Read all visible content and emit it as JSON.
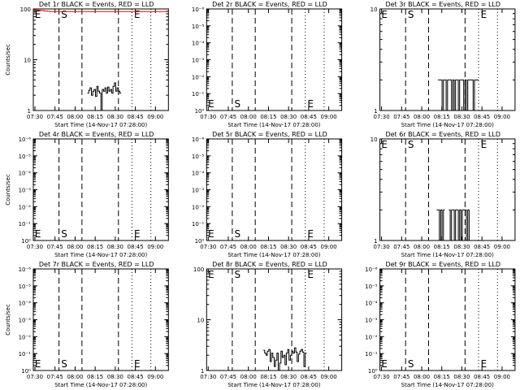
{
  "chart_data": [
    {
      "type": "line",
      "title": "Det 1r BLACK = Events, RED = LLD",
      "ylabel": "Counts/sec",
      "xlabel": "Start Time (14-Nov-17 07:28:00)",
      "yscale": "log",
      "ylim": [
        1,
        100
      ],
      "ytick_labels": [
        "1",
        "10",
        "100"
      ],
      "xlim": [
        0,
        100
      ],
      "xtick_labels": [
        "07:30",
        "07:45",
        "08:00",
        "08:15",
        "08:30",
        "08:45",
        "09:00"
      ],
      "markers": {
        "dashed": [
          19,
          36,
          63
        ],
        "dotted": [
          73,
          87
        ],
        "letters": [
          {
            "text": "E",
            "x": 0.5
          },
          {
            "text": "S",
            "x": 20
          },
          {
            "text": "E",
            "x": 74
          }
        ]
      },
      "series": [
        {
          "name": "Events",
          "color": "#000000",
          "values": [
            0,
            0,
            0,
            0,
            0,
            0,
            0,
            0,
            0,
            0,
            0,
            0,
            0,
            0,
            0,
            0,
            0,
            0,
            0,
            0,
            0,
            0,
            0,
            0,
            0,
            0,
            0,
            0,
            0,
            0,
            0,
            0,
            0,
            0,
            0,
            0,
            0,
            0,
            0,
            0,
            2.2,
            2.5,
            2.8,
            2.0,
            2.4,
            2.6,
            1.9,
            3.0,
            2.4,
            2.2,
            1.0,
            2.6,
            2.4,
            2.8,
            2.2,
            2.9,
            2.4,
            2.6,
            2.2,
            3.0,
            3.5,
            2.4,
            2.8,
            2.4,
            2.2,
            0,
            0,
            0,
            0,
            0,
            0,
            0,
            0,
            0,
            0,
            0,
            0,
            0,
            0,
            0,
            0,
            0,
            0,
            0,
            0,
            0,
            0,
            0,
            0,
            0,
            0,
            0,
            0,
            0,
            0,
            0,
            0,
            0,
            0,
            0
          ]
        },
        {
          "name": "LLD",
          "color": "#ff0000",
          "values": [
            97,
            97,
            96,
            95,
            95,
            94,
            93,
            93,
            92,
            91,
            91,
            90,
            90,
            89,
            89,
            89,
            89,
            89,
            89,
            89,
            89,
            89,
            89,
            89,
            89,
            89,
            89,
            89,
            89,
            89,
            89,
            89,
            89,
            89,
            89,
            89,
            89,
            89,
            89,
            89,
            89,
            89,
            89,
            89,
            89,
            89,
            89,
            89,
            89,
            89,
            89,
            89,
            89,
            89,
            89,
            89,
            89,
            89,
            89,
            89,
            89,
            89,
            89,
            89,
            89,
            89,
            89,
            89,
            89,
            89,
            89,
            89,
            89,
            89,
            89,
            89,
            89,
            89,
            89,
            89,
            89,
            89,
            89,
            89,
            89,
            89,
            89,
            89,
            89,
            89,
            89,
            89,
            89,
            89,
            89,
            89,
            89,
            89,
            89,
            89,
            89,
            89,
            89,
            89,
            89,
            89
          ]
        }
      ]
    },
    {
      "type": "line",
      "title": "Det 2r BLACK = Events, RED = LLD",
      "ylabel": "",
      "xlabel": "Start Time (14-Nov-17 07:28:00)",
      "yscale": "log",
      "ylim": [
        1e-06,
        1
      ],
      "ytick_labels": [
        "10⁰",
        "10⁻¹",
        "10⁻²",
        "10⁻³",
        "10⁻⁴",
        "10⁻⁵",
        "10⁻⁶"
      ],
      "xlim": [
        0,
        100
      ],
      "xtick_labels": [
        "07:30",
        "07:45",
        "08:00",
        "08:15",
        "08:30",
        "08:45",
        "09:00"
      ],
      "markers": {
        "dashed": [
          19,
          36,
          63
        ],
        "dotted": [
          73,
          87
        ],
        "letters": [
          {
            "text": "E",
            "x": 0.5
          },
          {
            "text": "S",
            "x": 20
          },
          {
            "text": "E",
            "x": 74
          }
        ],
        "letters_pos": "bottom"
      },
      "series": []
    },
    {
      "type": "line",
      "title": "Det 3r BLACK = Events, RED = LLD",
      "ylabel": "",
      "xlabel": "Start Time (14-Nov-17 07:28:00)",
      "yscale": "log",
      "ylim": [
        1,
        10
      ],
      "ytick_labels": [
        "1",
        "10"
      ],
      "xlim": [
        0,
        100
      ],
      "xtick_labels": [
        "07:30",
        "07:45",
        "08:00",
        "08:15",
        "08:30",
        "08:45",
        "09:00"
      ],
      "markers": {
        "dashed": [
          19,
          36,
          63
        ],
        "dotted": [
          73,
          87
        ],
        "letters": [
          {
            "text": "E",
            "x": 0.5
          },
          {
            "text": "S",
            "x": 20
          },
          {
            "text": "E",
            "x": 74
          }
        ]
      },
      "series": [
        {
          "name": "Events",
          "color": "#000000",
          "values": [
            0,
            0,
            0,
            0,
            0,
            0,
            0,
            0,
            0,
            0,
            0,
            0,
            0,
            0,
            0,
            0,
            0,
            0,
            0,
            0,
            0,
            0,
            0,
            0,
            0,
            0,
            0,
            0,
            0,
            0,
            0,
            0,
            0,
            0,
            0,
            0,
            0,
            0,
            0,
            0,
            0,
            0,
            0,
            2,
            2,
            2,
            1,
            2,
            2,
            1,
            2,
            2,
            2,
            1,
            2,
            1,
            2,
            2,
            1,
            2,
            2,
            2,
            1,
            2,
            1,
            2,
            2,
            2,
            2,
            1,
            2,
            2,
            2,
            0,
            0,
            0,
            0,
            0,
            0,
            0,
            0,
            0,
            0,
            0,
            0,
            0,
            0,
            0,
            0,
            0,
            0,
            0,
            0,
            0,
            0,
            0,
            0,
            0,
            0,
            0
          ]
        }
      ]
    },
    {
      "type": "line",
      "title": "Det 4r BLACK = Events, RED = LLD",
      "ylabel": "Counts/sec",
      "xlabel": "Start Time (14-Nov-17 07:28:00)",
      "yscale": "log",
      "ylim": [
        1e-06,
        1
      ],
      "ytick_labels": [
        "10⁰",
        "10⁻¹",
        "10⁻²",
        "10⁻³",
        "10⁻⁴",
        "10⁻⁵",
        "10⁻⁶"
      ],
      "xlim": [
        0,
        100
      ],
      "xtick_labels": [
        "07:30",
        "07:45",
        "08:00",
        "08:15",
        "08:30",
        "08:45",
        "09:00"
      ],
      "markers": {
        "dashed": [
          19,
          36,
          63
        ],
        "dotted": [
          73,
          87
        ],
        "letters": [
          {
            "text": "E",
            "x": 0.5
          },
          {
            "text": "S",
            "x": 20
          },
          {
            "text": "E",
            "x": 74
          }
        ],
        "letters_pos": "bottom"
      },
      "series": []
    },
    {
      "type": "line",
      "title": "Det 5r BLACK = Events, RED = LLD",
      "ylabel": "",
      "xlabel": "Start Time (14-Nov-17 07:28:00)",
      "yscale": "log",
      "ylim": [
        1e-06,
        1
      ],
      "ytick_labels": [
        "10⁰",
        "10⁻¹",
        "10⁻²",
        "10⁻³",
        "10⁻⁴",
        "10⁻⁵",
        "10⁻⁶"
      ],
      "xlim": [
        0,
        100
      ],
      "xtick_labels": [
        "07:30",
        "07:45",
        "08:00",
        "08:15",
        "08:30",
        "08:45",
        "09:00"
      ],
      "markers": {
        "dashed": [
          19,
          36,
          63
        ],
        "dotted": [
          73,
          87
        ],
        "letters": [
          {
            "text": "E",
            "x": 0.5
          },
          {
            "text": "S",
            "x": 20
          },
          {
            "text": "E",
            "x": 74
          }
        ],
        "letters_pos": "bottom"
      },
      "series": []
    },
    {
      "type": "line",
      "title": "Det 6r BLACK = Events, RED = LLD",
      "ylabel": "",
      "xlabel": "Start Time (14-Nov-17 07:28:00)",
      "yscale": "log",
      "ylim": [
        1,
        10
      ],
      "ytick_labels": [
        "1",
        "10"
      ],
      "xlim": [
        0,
        100
      ],
      "xtick_labels": [
        "07:30",
        "07:45",
        "08:00",
        "08:15",
        "08:30",
        "08:45",
        "09:00"
      ],
      "markers": {
        "dashed": [
          19,
          36,
          63
        ],
        "dotted": [
          73,
          87
        ],
        "letters": [
          {
            "text": "E",
            "x": 0.5
          },
          {
            "text": "S",
            "x": 20
          },
          {
            "text": "E",
            "x": 74
          }
        ]
      },
      "series": [
        {
          "name": "Events",
          "color": "#000000",
          "values": [
            0,
            0,
            0,
            0,
            0,
            0,
            0,
            0,
            0,
            0,
            0,
            0,
            0,
            0,
            0,
            0,
            0,
            0,
            0,
            0,
            0,
            0,
            0,
            0,
            0,
            0,
            0,
            0,
            0,
            0,
            0,
            0,
            0,
            0,
            0,
            0,
            0,
            0,
            0,
            0,
            0,
            0,
            2,
            2,
            1,
            2,
            1,
            2,
            0,
            0,
            0,
            2,
            1,
            2,
            2,
            1,
            2,
            2,
            1,
            2,
            1,
            2,
            2,
            2,
            1,
            2,
            1,
            0,
            0,
            0,
            0,
            0,
            0,
            0,
            0,
            0,
            0,
            0,
            0,
            0,
            0,
            0,
            0,
            0,
            0,
            0,
            0,
            0,
            0,
            0,
            0,
            0,
            0,
            0,
            0,
            0,
            0,
            0,
            0,
            0
          ]
        }
      ]
    },
    {
      "type": "line",
      "title": "Det 7r BLACK = Events, RED = LLD",
      "ylabel": "Counts/sec",
      "xlabel": "Start Time (14-Nov-17 07:28:00)",
      "yscale": "log",
      "ylim": [
        1e-06,
        1
      ],
      "ytick_labels": [
        "10⁰",
        "10⁻¹",
        "10⁻²",
        "10⁻³",
        "10⁻⁴",
        "10⁻⁵",
        "10⁻⁶"
      ],
      "xlim": [
        0,
        100
      ],
      "xtick_labels": [
        "07:30",
        "07:45",
        "08:00",
        "08:15",
        "08:30",
        "08:45",
        "09:00"
      ],
      "markers": {
        "dashed": [
          19,
          36,
          63
        ],
        "dotted": [
          73,
          87
        ],
        "letters": [
          {
            "text": "E",
            "x": 0.5
          },
          {
            "text": "S",
            "x": 20
          },
          {
            "text": "E",
            "x": 74
          }
        ],
        "letters_pos": "bottom"
      },
      "series": []
    },
    {
      "type": "line",
      "title": "Det 8r BLACK = Events, RED = LLD",
      "ylabel": "",
      "xlabel": "Start Time (14-Nov-17 07:28:00)",
      "yscale": "log",
      "ylim": [
        1,
        100
      ],
      "ytick_labels": [
        "1",
        "10",
        "100"
      ],
      "xlim": [
        0,
        100
      ],
      "xtick_labels": [
        "07:30",
        "07:45",
        "08:00",
        "08:15",
        "08:30",
        "08:45",
        "09:00"
      ],
      "markers": {
        "dashed": [
          19,
          36,
          63
        ],
        "dotted": [
          73,
          87
        ],
        "letters": [
          {
            "text": "E",
            "x": 0.5
          },
          {
            "text": "S",
            "x": 20
          },
          {
            "text": "E",
            "x": 74
          }
        ]
      },
      "series": [
        {
          "name": "Events",
          "color": "#000000",
          "values": [
            0,
            0,
            0,
            0,
            0,
            0,
            0,
            0,
            0,
            0,
            0,
            0,
            0,
            0,
            0,
            0,
            0,
            0,
            0,
            0,
            0,
            0,
            0,
            0,
            0,
            0,
            0,
            0,
            0,
            0,
            0,
            0,
            0,
            0,
            0,
            0,
            0,
            0,
            0,
            0,
            0,
            0,
            2.5,
            2.2,
            2.0,
            2.4,
            2.6,
            1.5,
            2.2,
            1.8,
            1.2,
            1.6,
            2.2,
            1.0,
            1.4,
            2.4,
            1.8,
            2.0,
            1.3,
            2.2,
            2.6,
            1.6,
            2.0,
            2.4,
            2.2,
            2.8,
            2.3,
            1.5,
            2.1,
            2.4,
            2.6,
            2.3,
            1.2,
            2.2,
            0,
            0,
            0,
            0,
            0,
            0,
            0,
            0,
            0,
            0,
            0,
            0,
            0,
            0,
            0,
            0,
            0,
            0,
            0,
            0,
            0,
            0,
            0,
            0,
            0,
            0
          ]
        }
      ]
    },
    {
      "type": "line",
      "title": "Det 9r BLACK = Events, RED = LLD",
      "ylabel": "",
      "xlabel": "Start Time (14-Nov-17 07:28:00)",
      "yscale": "log",
      "ylim": [
        1e-06,
        1
      ],
      "ytick_labels": [
        "10⁰",
        "10⁻¹",
        "10⁻²",
        "10⁻³",
        "10⁻⁴",
        "10⁻⁵",
        "10⁻⁶"
      ],
      "xlim": [
        0,
        100
      ],
      "xtick_labels": [
        "07:30",
        "07:45",
        "08:00",
        "08:15",
        "08:30",
        "08:45",
        "09:00"
      ],
      "markers": {
        "dashed": [
          19,
          36,
          63
        ],
        "dotted": [
          73,
          87
        ],
        "letters": [
          {
            "text": "E",
            "x": 0.5
          },
          {
            "text": "S",
            "x": 20
          },
          {
            "text": "E",
            "x": 74
          }
        ],
        "letters_pos": "bottom"
      },
      "series": []
    }
  ]
}
